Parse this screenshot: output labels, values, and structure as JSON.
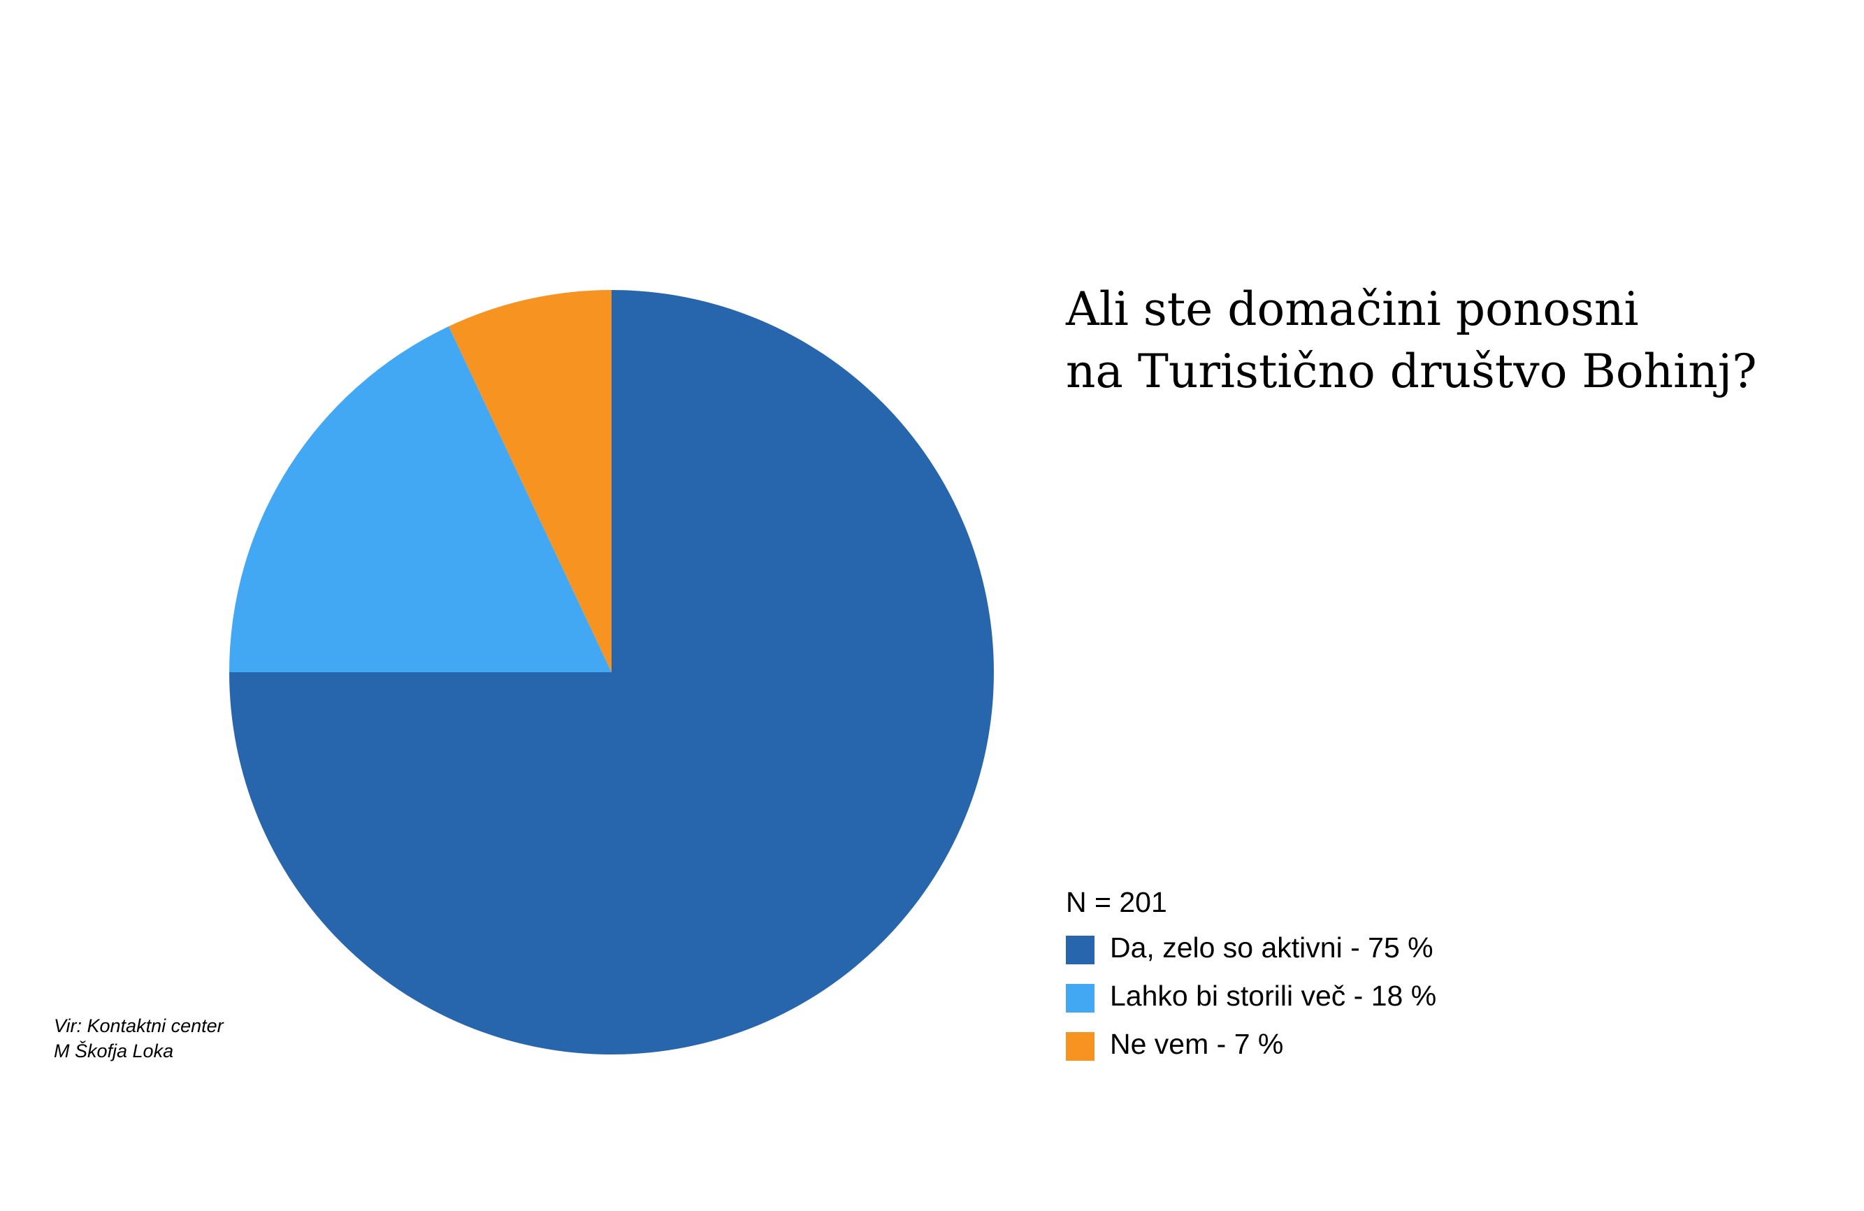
{
  "chart_data": {
    "type": "pie",
    "title": [
      "Ali ste domačini ponosni",
      "na Turistično društvo Bohinj?"
    ],
    "legend_title": "N = 201",
    "categories": [
      "Da, zelo so aktivni - 75 %",
      "Lahko bi storili več - 18 %",
      "Ne vem - 7 %"
    ],
    "values": [
      75,
      18,
      7
    ],
    "colors": [
      "#2765ac",
      "#42a8f3",
      "#f79421"
    ],
    "source": [
      "Vir: Kontaktni center",
      "M Škofja Loka"
    ]
  }
}
